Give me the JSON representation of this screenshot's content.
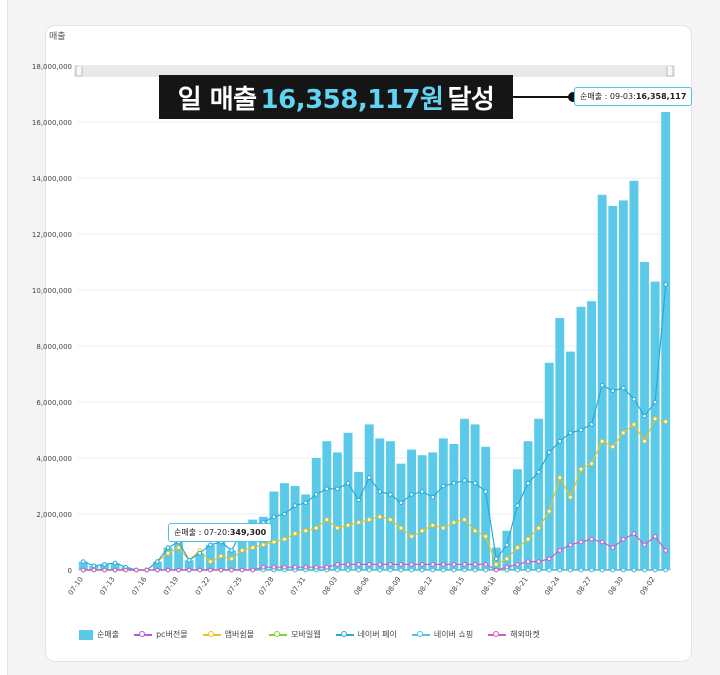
{
  "headline": {
    "prefix": "일 매출 ",
    "value": "16,358,117원",
    "suffix": " 달성"
  },
  "card_title": "매출",
  "tooltips": [
    {
      "label": "순매출 : 09-03:",
      "value": "16,358,117"
    },
    {
      "label": "순매출 : 07-20:",
      "value": "349,300"
    }
  ],
  "chart_data": {
    "type": "bar",
    "x": [
      "07-10",
      "07-11",
      "07-12",
      "07-13",
      "07-14",
      "07-15",
      "07-16",
      "07-17",
      "07-18",
      "07-19",
      "07-20",
      "07-21",
      "07-22",
      "07-23",
      "07-24",
      "07-25",
      "07-26",
      "07-27",
      "07-28",
      "07-29",
      "07-30",
      "07-31",
      "08-01",
      "08-02",
      "08-03",
      "08-04",
      "08-05",
      "08-06",
      "08-07",
      "08-08",
      "08-09",
      "08-10",
      "08-11",
      "08-12",
      "08-13",
      "08-14",
      "08-15",
      "08-16",
      "08-17",
      "08-18",
      "08-19",
      "08-20",
      "08-21",
      "08-22",
      "08-23",
      "08-24",
      "08-25",
      "08-26",
      "08-27",
      "08-28",
      "08-29",
      "08-30",
      "08-31",
      "09-01",
      "09-02",
      "09-03"
    ],
    "tick_labels": [
      "07-10",
      "07-13",
      "07-16",
      "07-19",
      "07-22",
      "07-25",
      "07-28",
      "07-31",
      "08-03",
      "08-06",
      "08-09",
      "08-12",
      "08-15",
      "08-18",
      "08-21",
      "08-24",
      "08-27",
      "08-30",
      "09-02"
    ],
    "y_tick_labels": [
      "0",
      "2,000,000",
      "4,000,000",
      "6,000,000",
      "8,000,000",
      "10,000,000",
      "12,000,000",
      "14,000,000",
      "16,000,000",
      "18,000,000"
    ],
    "ylim": [
      0,
      18000000
    ],
    "series": [
      {
        "name": "순매출",
        "kind": "bar",
        "color": "#5bcae9",
        "values": [
          300000,
          150000,
          200000,
          250000,
          100000,
          0,
          0,
          300000,
          800000,
          1000000,
          349300,
          600000,
          900000,
          1000000,
          700000,
          1500000,
          1800000,
          1900000,
          2800000,
          3100000,
          3000000,
          2700000,
          4000000,
          4600000,
          4200000,
          4900000,
          3500000,
          5200000,
          4700000,
          4600000,
          3800000,
          4300000,
          4100000,
          4200000,
          4700000,
          4500000,
          5400000,
          5200000,
          4400000,
          800000,
          1400000,
          3600000,
          4600000,
          5400000,
          7400000,
          9000000,
          7800000,
          9400000,
          9600000,
          13400000,
          13000000,
          13200000,
          13900000,
          11000000,
          10300000,
          16358117
        ]
      },
      {
        "name": "pc버전몰",
        "kind": "line",
        "color": "#b45cd6",
        "values": [
          0,
          0,
          0,
          0,
          0,
          0,
          0,
          0,
          0,
          0,
          0,
          0,
          0,
          0,
          0,
          0,
          0,
          0,
          0,
          0,
          0,
          0,
          0,
          0,
          0,
          0,
          0,
          0,
          0,
          0,
          0,
          0,
          0,
          0,
          0,
          0,
          0,
          0,
          0,
          0,
          0,
          0,
          0,
          0,
          0,
          0,
          0,
          0,
          0,
          0,
          0,
          0,
          0,
          0,
          0,
          0
        ]
      },
      {
        "name": "앱버쉼몰",
        "kind": "line",
        "color": "#e8c21e",
        "values": [
          0,
          0,
          0,
          0,
          0,
          0,
          0,
          300000,
          600000,
          800000,
          349300,
          700000,
          300000,
          500000,
          400000,
          700000,
          800000,
          900000,
          1000000,
          1100000,
          1300000,
          1400000,
          1500000,
          1800000,
          1500000,
          1600000,
          1700000,
          1800000,
          1900000,
          1800000,
          1500000,
          1200000,
          1400000,
          1600000,
          1500000,
          1700000,
          1800000,
          1400000,
          1200000,
          200000,
          400000,
          800000,
          1100000,
          1500000,
          2100000,
          3300000,
          2600000,
          3600000,
          3800000,
          4600000,
          4400000,
          4900000,
          5200000,
          4600000,
          5400000,
          5300000
        ]
      },
      {
        "name": "모바일웹",
        "kind": "line",
        "color": "#7ed23a",
        "values": [
          0,
          0,
          0,
          0,
          0,
          0,
          0,
          0,
          0,
          0,
          0,
          0,
          0,
          0,
          0,
          0,
          0,
          0,
          0,
          0,
          0,
          0,
          0,
          0,
          0,
          0,
          0,
          0,
          0,
          0,
          0,
          0,
          0,
          0,
          0,
          0,
          0,
          0,
          0,
          0,
          0,
          0,
          0,
          0,
          0,
          0,
          0,
          0,
          0,
          0,
          0,
          0,
          0,
          0,
          0,
          0
        ]
      },
      {
        "name": "네이버 페이",
        "kind": "line",
        "color": "#2aa9d8",
        "values": [
          300000,
          150000,
          200000,
          250000,
          100000,
          0,
          0,
          300000,
          800000,
          1000000,
          349300,
          600000,
          900000,
          1000000,
          700000,
          1400000,
          1600000,
          1700000,
          1900000,
          2000000,
          2300000,
          2400000,
          2700000,
          2900000,
          2900000,
          3100000,
          2500000,
          3300000,
          2800000,
          2700000,
          2400000,
          2700000,
          2800000,
          2600000,
          3000000,
          3100000,
          3200000,
          3100000,
          2800000,
          400000,
          900000,
          2300000,
          3100000,
          3500000,
          4200000,
          4600000,
          4900000,
          5000000,
          5200000,
          6600000,
          6400000,
          6500000,
          6100000,
          5500000,
          6000000,
          10200000
        ]
      },
      {
        "name": "네이버 쇼핑",
        "kind": "line",
        "color": "#4dc4e4",
        "values": [
          0,
          0,
          0,
          0,
          0,
          0,
          0,
          0,
          0,
          0,
          0,
          0,
          0,
          0,
          0,
          0,
          0,
          0,
          0,
          0,
          0,
          0,
          0,
          0,
          0,
          0,
          0,
          0,
          0,
          0,
          0,
          0,
          0,
          0,
          0,
          0,
          0,
          0,
          0,
          0,
          0,
          0,
          0,
          0,
          0,
          0,
          0,
          0,
          0,
          0,
          0,
          0,
          0,
          0,
          0,
          0
        ]
      },
      {
        "name": "해외마켓",
        "kind": "line",
        "color": "#d05cc2",
        "values": [
          0,
          0,
          0,
          0,
          0,
          0,
          0,
          0,
          0,
          0,
          0,
          0,
          0,
          0,
          0,
          0,
          0,
          100000,
          100000,
          100000,
          100000,
          100000,
          100000,
          100000,
          200000,
          200000,
          200000,
          200000,
          200000,
          200000,
          200000,
          200000,
          200000,
          200000,
          200000,
          200000,
          200000,
          200000,
          200000,
          0,
          100000,
          200000,
          300000,
          300000,
          400000,
          700000,
          900000,
          1000000,
          1100000,
          1000000,
          800000,
          1100000,
          1300000,
          900000,
          1200000,
          700000
        ]
      }
    ],
    "legend_position": "bottom-left"
  }
}
